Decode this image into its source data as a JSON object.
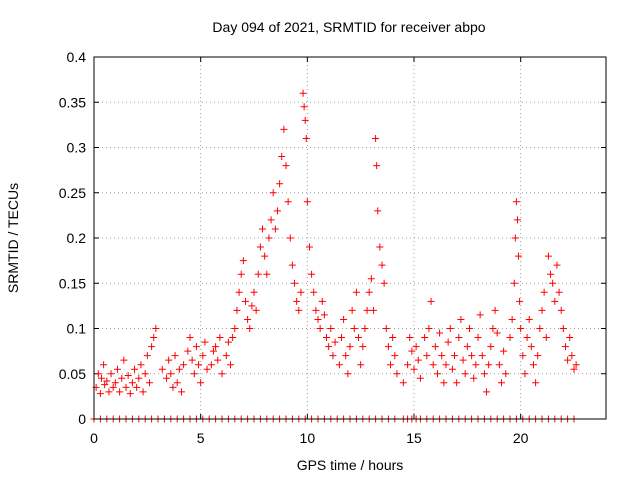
{
  "chart_data": {
    "type": "scatter",
    "title": "Day 094 of 2021, SRMTID for receiver abpo",
    "xlabel": "GPS time / hours",
    "ylabel": "SRMTID / TECUs",
    "xlim": [
      0,
      24
    ],
    "ylim": [
      0,
      0.4
    ],
    "xticks": [
      0,
      5,
      10,
      15,
      20
    ],
    "xtick_labels": [
      "0",
      "5",
      "10",
      "15",
      "20"
    ],
    "yticks": [
      0,
      0.05,
      0.1,
      0.15,
      0.2,
      0.25,
      0.3,
      0.35,
      0.4
    ],
    "ytick_labels": [
      "0",
      "0.05",
      "0.1",
      "0.15",
      "0.2",
      "0.25",
      "0.3",
      "0.35",
      "0.4"
    ],
    "grid": true,
    "marker": "+",
    "color": "#ff0000",
    "series": [
      {
        "name": "SRMTID",
        "points": [
          [
            0.1,
            0.035
          ],
          [
            0.2,
            0.05
          ],
          [
            0.3,
            0.028
          ],
          [
            0.35,
            0.045
          ],
          [
            0.45,
            0.06
          ],
          [
            0.5,
            0.038
          ],
          [
            0.6,
            0.042
          ],
          [
            0.7,
            0.03
          ],
          [
            0.8,
            0.05
          ],
          [
            0.9,
            0.035
          ],
          [
            1.0,
            0.04
          ],
          [
            1.1,
            0.055
          ],
          [
            1.2,
            0.03
          ],
          [
            1.3,
            0.045
          ],
          [
            1.4,
            0.065
          ],
          [
            1.5,
            0.035
          ],
          [
            1.6,
            0.048
          ],
          [
            1.7,
            0.028
          ],
          [
            1.8,
            0.04
          ],
          [
            1.9,
            0.055
          ],
          [
            2.0,
            0.035
          ],
          [
            2.1,
            0.045
          ],
          [
            2.2,
            0.06
          ],
          [
            2.3,
            0.03
          ],
          [
            2.4,
            0.05
          ],
          [
            2.5,
            0.07
          ],
          [
            2.6,
            0.04
          ],
          [
            2.7,
            0.08
          ],
          [
            2.8,
            0.09
          ],
          [
            2.9,
            0.1
          ],
          [
            3.2,
            0.055
          ],
          [
            3.4,
            0.045
          ],
          [
            3.5,
            0.065
          ],
          [
            3.6,
            0.05
          ],
          [
            3.7,
            0.035
          ],
          [
            3.8,
            0.07
          ],
          [
            3.9,
            0.04
          ],
          [
            4.0,
            0.055
          ],
          [
            4.1,
            0.03
          ],
          [
            4.2,
            0.06
          ],
          [
            4.4,
            0.075
          ],
          [
            4.5,
            0.09
          ],
          [
            4.6,
            0.065
          ],
          [
            4.7,
            0.05
          ],
          [
            4.8,
            0.08
          ],
          [
            4.9,
            0.06
          ],
          [
            5.0,
            0.04
          ],
          [
            5.1,
            0.07
          ],
          [
            5.2,
            0.085
          ],
          [
            5.3,
            0.055
          ],
          [
            5.5,
            0.06
          ],
          [
            5.6,
            0.075
          ],
          [
            5.7,
            0.08
          ],
          [
            5.8,
            0.065
          ],
          [
            5.9,
            0.09
          ],
          [
            6.0,
            0.05
          ],
          [
            6.2,
            0.07
          ],
          [
            6.3,
            0.085
          ],
          [
            6.4,
            0.06
          ],
          [
            6.5,
            0.09
          ],
          [
            6.6,
            0.1
          ],
          [
            6.7,
            0.12
          ],
          [
            6.8,
            0.14
          ],
          [
            6.9,
            0.16
          ],
          [
            7.0,
            0.175
          ],
          [
            7.1,
            0.13
          ],
          [
            7.2,
            0.11
          ],
          [
            7.3,
            0.1
          ],
          [
            7.4,
            0.125
          ],
          [
            7.5,
            0.14
          ],
          [
            7.6,
            0.12
          ],
          [
            7.7,
            0.16
          ],
          [
            7.8,
            0.19
          ],
          [
            7.9,
            0.21
          ],
          [
            8.0,
            0.18
          ],
          [
            8.1,
            0.16
          ],
          [
            8.2,
            0.2
          ],
          [
            8.3,
            0.22
          ],
          [
            8.4,
            0.25
          ],
          [
            8.5,
            0.21
          ],
          [
            8.6,
            0.23
          ],
          [
            8.7,
            0.26
          ],
          [
            8.8,
            0.29
          ],
          [
            8.9,
            0.32
          ],
          [
            9.0,
            0.28
          ],
          [
            9.1,
            0.24
          ],
          [
            9.2,
            0.2
          ],
          [
            9.3,
            0.17
          ],
          [
            9.4,
            0.15
          ],
          [
            9.5,
            0.13
          ],
          [
            9.6,
            0.12
          ],
          [
            9.7,
            0.14
          ],
          [
            9.8,
            0.36
          ],
          [
            9.85,
            0.345
          ],
          [
            9.9,
            0.33
          ],
          [
            9.95,
            0.31
          ],
          [
            10.0,
            0.24
          ],
          [
            10.1,
            0.19
          ],
          [
            10.2,
            0.16
          ],
          [
            10.3,
            0.14
          ],
          [
            10.4,
            0.12
          ],
          [
            10.5,
            0.11
          ],
          [
            10.6,
            0.1
          ],
          [
            10.7,
            0.13
          ],
          [
            10.8,
            0.115
          ],
          [
            10.9,
            0.09
          ],
          [
            11.0,
            0.08
          ],
          [
            11.1,
            0.1
          ],
          [
            11.2,
            0.07
          ],
          [
            11.3,
            0.085
          ],
          [
            11.5,
            0.06
          ],
          [
            11.6,
            0.09
          ],
          [
            11.7,
            0.11
          ],
          [
            11.8,
            0.07
          ],
          [
            11.9,
            0.05
          ],
          [
            12.0,
            0.08
          ],
          [
            12.1,
            0.12
          ],
          [
            12.2,
            0.1
          ],
          [
            12.3,
            0.14
          ],
          [
            12.4,
            0.09
          ],
          [
            12.5,
            0.06
          ],
          [
            12.6,
            0.08
          ],
          [
            12.7,
            0.1
          ],
          [
            12.8,
            0.12
          ],
          [
            12.9,
            0.14
          ],
          [
            13.0,
            0.155
          ],
          [
            13.1,
            0.12
          ],
          [
            13.2,
            0.31
          ],
          [
            13.25,
            0.28
          ],
          [
            13.3,
            0.23
          ],
          [
            13.4,
            0.19
          ],
          [
            13.5,
            0.17
          ],
          [
            13.6,
            0.15
          ],
          [
            13.7,
            0.1
          ],
          [
            13.8,
            0.08
          ],
          [
            13.9,
            0.06
          ],
          [
            14.0,
            0.09
          ],
          [
            14.1,
            0.07
          ],
          [
            14.2,
            0.05
          ],
          [
            14.5,
            0.04
          ],
          [
            14.7,
            0.06
          ],
          [
            14.8,
            0.09
          ],
          [
            14.9,
            0.075
          ],
          [
            15.0,
            0.055
          ],
          [
            15.1,
            0.08
          ],
          [
            15.2,
            0.065
          ],
          [
            15.3,
            0.045
          ],
          [
            15.5,
            0.09
          ],
          [
            15.6,
            0.07
          ],
          [
            15.7,
            0.1
          ],
          [
            15.8,
            0.13
          ],
          [
            15.9,
            0.06
          ],
          [
            16.0,
            0.08
          ],
          [
            16.1,
            0.05
          ],
          [
            16.2,
            0.095
          ],
          [
            16.3,
            0.07
          ],
          [
            16.4,
            0.04
          ],
          [
            16.5,
            0.06
          ],
          [
            16.6,
            0.085
          ],
          [
            16.7,
            0.1
          ],
          [
            16.8,
            0.055
          ],
          [
            16.9,
            0.07
          ],
          [
            17.0,
            0.04
          ],
          [
            17.1,
            0.09
          ],
          [
            17.2,
            0.11
          ],
          [
            17.3,
            0.065
          ],
          [
            17.4,
            0.05
          ],
          [
            17.5,
            0.08
          ],
          [
            17.6,
            0.1
          ],
          [
            17.7,
            0.07
          ],
          [
            17.8,
            0.045
          ],
          [
            17.9,
            0.06
          ],
          [
            18.0,
            0.09
          ],
          [
            18.1,
            0.115
          ],
          [
            18.2,
            0.07
          ],
          [
            18.3,
            0.05
          ],
          [
            18.4,
            0.03
          ],
          [
            18.5,
            0.06
          ],
          [
            18.6,
            0.08
          ],
          [
            18.7,
            0.1
          ],
          [
            18.8,
            0.12
          ],
          [
            18.9,
            0.095
          ],
          [
            19.0,
            0.06
          ],
          [
            19.1,
            0.04
          ],
          [
            19.2,
            0.075
          ],
          [
            19.3,
            0.05
          ],
          [
            19.5,
            0.09
          ],
          [
            19.6,
            0.11
          ],
          [
            19.7,
            0.15
          ],
          [
            19.75,
            0.2
          ],
          [
            19.8,
            0.24
          ],
          [
            19.85,
            0.22
          ],
          [
            19.9,
            0.18
          ],
          [
            19.95,
            0.13
          ],
          [
            20.0,
            0.1
          ],
          [
            20.1,
            0.07
          ],
          [
            20.2,
            0.05
          ],
          [
            20.3,
            0.09
          ],
          [
            20.4,
            0.11
          ],
          [
            20.5,
            0.08
          ],
          [
            20.6,
            0.06
          ],
          [
            20.7,
            0.04
          ],
          [
            20.8,
            0.07
          ],
          [
            20.9,
            0.1
          ],
          [
            21.0,
            0.12
          ],
          [
            21.1,
            0.14
          ],
          [
            21.2,
            0.09
          ],
          [
            21.3,
            0.18
          ],
          [
            21.4,
            0.16
          ],
          [
            21.5,
            0.15
          ],
          [
            21.6,
            0.13
          ],
          [
            21.7,
            0.17
          ],
          [
            21.8,
            0.14
          ],
          [
            21.9,
            0.12
          ],
          [
            22.0,
            0.1
          ],
          [
            22.1,
            0.08
          ],
          [
            22.2,
            0.065
          ],
          [
            22.3,
            0.09
          ],
          [
            22.4,
            0.07
          ],
          [
            22.5,
            0.055
          ],
          [
            22.6,
            0.06
          ]
        ],
        "zero_points_x": [
          0.0,
          0.3,
          0.6,
          0.9,
          1.2,
          1.5,
          1.8,
          2.1,
          2.4,
          2.7,
          3.0,
          3.3,
          3.6,
          3.9,
          4.2,
          4.5,
          4.8,
          5.1,
          5.4,
          5.7,
          6.0,
          6.3,
          6.6,
          6.9,
          7.2,
          7.5,
          7.8,
          8.1,
          8.4,
          8.7,
          9.0,
          9.3,
          9.6,
          9.9,
          10.2,
          10.5,
          10.8,
          11.1,
          11.4,
          11.7,
          12.0,
          12.3,
          12.6,
          12.9,
          13.2,
          13.5,
          13.8,
          14.1,
          14.5,
          14.7,
          14.9,
          15.1,
          15.3,
          15.6,
          15.9,
          16.2,
          16.5,
          16.8,
          17.1,
          17.4,
          17.7,
          18.0,
          18.3,
          18.6,
          18.9,
          19.2,
          19.5,
          19.8,
          20.1,
          20.4,
          20.7,
          21.0,
          21.3,
          21.6,
          21.9,
          22.2,
          22.5
        ]
      }
    ]
  }
}
